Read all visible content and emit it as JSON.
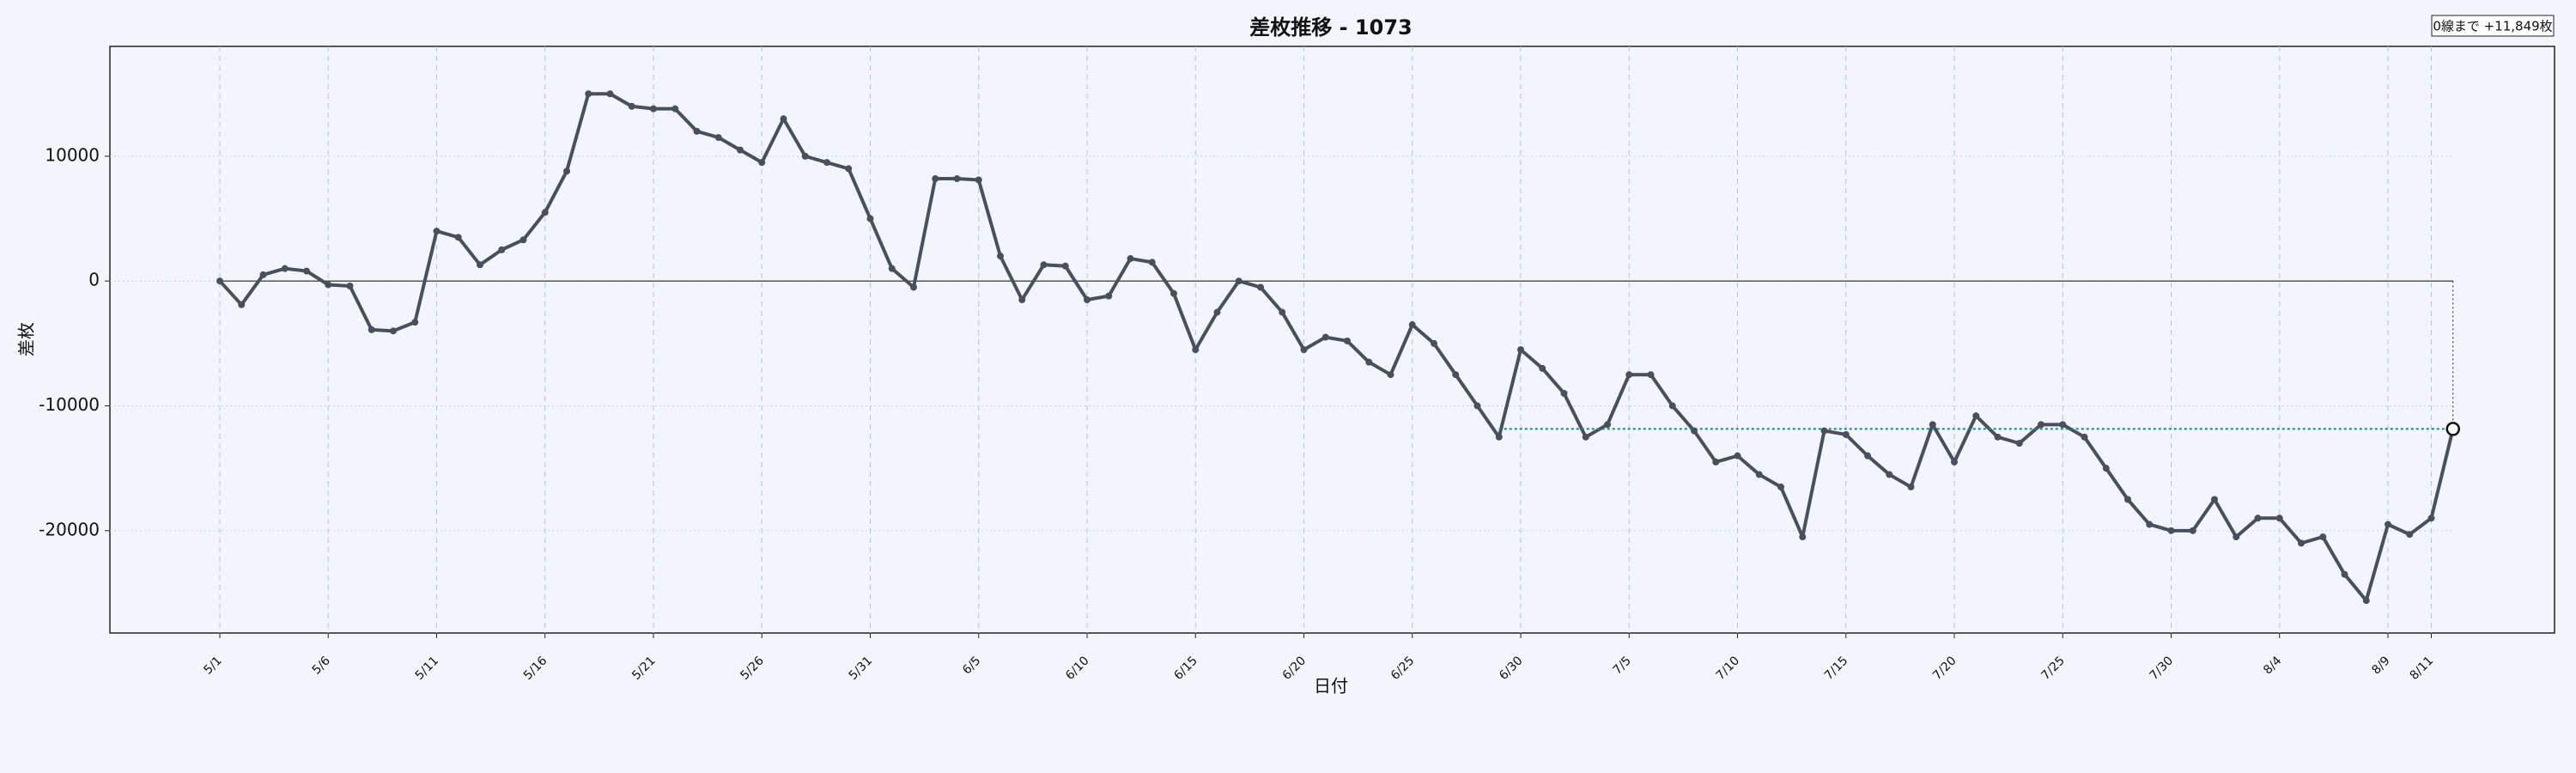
{
  "chart_data": {
    "type": "line",
    "title": "差枚推移 - 1073",
    "x_label": "日付",
    "y_label": "差枚",
    "annotation": "0線まで +11,849枚",
    "categories": [
      "5/1",
      null,
      null,
      null,
      null,
      "5/6",
      null,
      null,
      null,
      null,
      "5/11",
      null,
      null,
      null,
      null,
      "5/16",
      null,
      null,
      null,
      null,
      "5/21",
      null,
      null,
      null,
      null,
      "5/26",
      null,
      null,
      null,
      null,
      "5/31",
      null,
      null,
      null,
      null,
      "6/5",
      null,
      null,
      null,
      null,
      "6/10",
      null,
      null,
      null,
      null,
      "6/15",
      null,
      null,
      null,
      null,
      "6/20",
      null,
      null,
      null,
      null,
      "6/25",
      null,
      null,
      null,
      null,
      "6/30",
      null,
      null,
      null,
      null,
      "7/5",
      null,
      null,
      null,
      null,
      "7/10",
      null,
      null,
      null,
      null,
      "7/15",
      null,
      null,
      null,
      null,
      "7/20",
      null,
      null,
      null,
      null,
      "7/25",
      null,
      null,
      null,
      null,
      "7/30",
      null,
      null,
      null,
      null,
      "8/4",
      null,
      null,
      null,
      null,
      "8/9",
      null,
      "8/11",
      null
    ],
    "highlight_categories": [
      "6/5",
      "6/15",
      "6/25",
      "7/5",
      "7/15",
      "7/25"
    ],
    "highlight_color": "#e02020",
    "series": [
      {
        "name": "差枚",
        "color": "#4a4f5c",
        "values": [
          0,
          -1900,
          500,
          1000,
          800,
          -300,
          -400,
          -3900,
          -4000,
          -3300,
          4000,
          3500,
          1300,
          2500,
          3300,
          5500,
          8800,
          15000,
          15000,
          14000,
          13800,
          13800,
          12000,
          11500,
          10500,
          9500,
          13000,
          10000,
          9500,
          9000,
          5000,
          1000,
          -500,
          8200,
          8200,
          8100,
          2000,
          -1500,
          1300,
          1200,
          -1500,
          -1200,
          1800,
          1500,
          -1000,
          -5500,
          -2500,
          0,
          -500,
          -2500,
          -5500,
          -4500,
          -4800,
          -6500,
          -7500,
          -3500,
          -5000,
          -7500,
          -10000,
          -12500,
          -5500,
          -7000,
          -9000,
          -12500,
          -11500,
          -7500,
          -7500,
          -10000,
          -12000,
          -14500,
          -14000,
          -15500,
          -16500,
          -20500,
          -12000,
          -12300,
          -14000,
          -15500,
          -16500,
          -11500,
          -14500,
          -10800,
          -12500,
          -13000,
          -11500,
          -11500,
          -12500,
          -15000,
          -17500,
          -19500,
          -20000,
          -20000,
          -17500,
          -20500,
          -19000,
          -19000,
          -21000,
          -20500,
          -23500,
          -25600,
          -19500,
          -20300,
          -19000,
          -11849
        ]
      }
    ],
    "ylim": [
      -28200,
      18800
    ],
    "yticks": [
      -20000,
      -10000,
      0,
      10000
    ],
    "grid": true,
    "reference_color": "#1a7f8f"
  }
}
